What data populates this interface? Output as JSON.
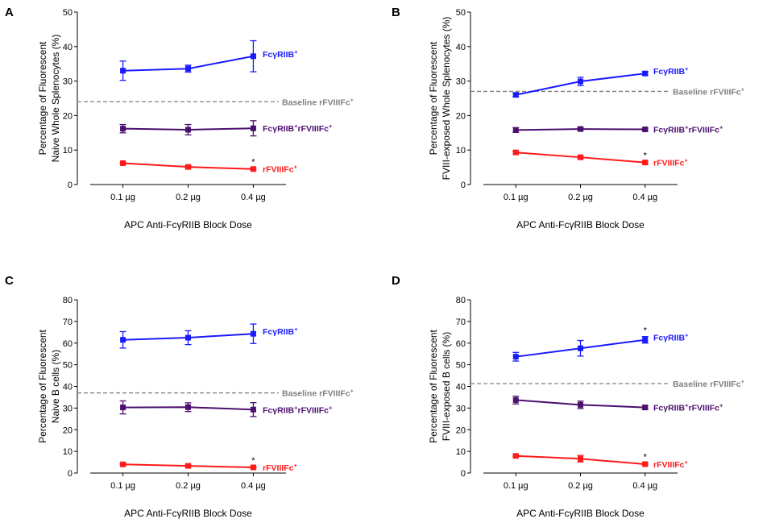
{
  "figure": {
    "x_axis_title": "APC Anti-FcγRIIB Block Dose",
    "colors": {
      "fcgr": "#1a1aff",
      "double": "#4b0f6e",
      "rfviii": "#ff1a1a",
      "baseline": "#808080",
      "axis": "#000000"
    }
  },
  "chart_data": [
    {
      "panel": "A",
      "type": "line",
      "categories": [
        "0.1 µg",
        "0.2 µg",
        "0.4 µg"
      ],
      "ylabel": [
        "Percentage of Fluorescent",
        "Naive Whole Splenocytes (%)"
      ],
      "xlabel": "APC Anti-FcγRIIB Block Dose",
      "ylim": [
        0,
        50
      ],
      "yticks": [
        0,
        10,
        20,
        30,
        40,
        50
      ],
      "baseline": {
        "value": 24,
        "label": "Baseline rFVIIIFc",
        "sup": "+"
      },
      "series": [
        {
          "key": "fcgr",
          "name": "FcγRIIB",
          "sup": "+",
          "values": [
            33,
            33.6,
            37.2
          ],
          "errors": [
            2.8,
            1,
            4.5
          ],
          "sig": [
            false,
            false,
            false
          ]
        },
        {
          "key": "double",
          "name": "FcγRIIB",
          "sup": "+",
          "name2": "rFVIIIFc",
          "sup2": "+",
          "values": [
            16.2,
            15.9,
            16.3
          ],
          "errors": [
            1.2,
            1.5,
            2.2
          ],
          "sig": [
            false,
            false,
            false
          ]
        },
        {
          "key": "rfviii",
          "name": "rFVIIIFc",
          "sup": "+",
          "values": [
            6.2,
            5.1,
            4.5
          ],
          "errors": [
            0.3,
            0.3,
            0.3
          ],
          "sig": [
            false,
            false,
            true
          ]
        }
      ]
    },
    {
      "panel": "B",
      "type": "line",
      "categories": [
        "0.1 µg",
        "0.2 µg",
        "0.4 µg"
      ],
      "ylabel": [
        "Percentage of Fluorescent",
        "FVIII-exposed Whole Splenocytes (%)"
      ],
      "xlabel": "APC Anti-FcγRIIB Block Dose",
      "ylim": [
        0,
        50
      ],
      "yticks": [
        0,
        10,
        20,
        30,
        40,
        50
      ],
      "baseline": {
        "value": 27,
        "label": "Baseline rFVIIIFc",
        "sup": "+"
      },
      "series": [
        {
          "key": "fcgr",
          "name": "FcγRIIB",
          "sup": "+",
          "values": [
            26,
            29.9,
            32.2
          ],
          "errors": [
            0.5,
            1.2,
            0.5
          ],
          "sig": [
            false,
            false,
            false
          ]
        },
        {
          "key": "double",
          "name": "FcγRIIB",
          "sup": "+",
          "name2": "rFVIIIFc",
          "sup2": "+",
          "values": [
            15.8,
            16.1,
            16
          ],
          "errors": [
            0.7,
            0.4,
            0.3
          ],
          "sig": [
            false,
            false,
            false
          ]
        },
        {
          "key": "rfviii",
          "name": "rFVIIIFc",
          "sup": "+",
          "values": [
            9.3,
            7.9,
            6.4
          ],
          "errors": [
            0.4,
            0.4,
            0.3
          ],
          "sig": [
            false,
            false,
            true
          ]
        }
      ]
    },
    {
      "panel": "C",
      "type": "line",
      "categories": [
        "0.1 µg",
        "0.2 µg",
        "0.4 µg"
      ],
      "ylabel": [
        "Percentage of Fluorescent",
        "Naive B cells (%)"
      ],
      "xlabel": "APC Anti-FcγRIIB Block Dose",
      "ylim": [
        0,
        80
      ],
      "yticks": [
        0,
        10,
        20,
        30,
        40,
        50,
        60,
        70,
        80
      ],
      "baseline": {
        "value": 37,
        "label": "Baseline rFVIIIFc",
        "sup": "+"
      },
      "series": [
        {
          "key": "fcgr",
          "name": "FcγRIIB",
          "sup": "+",
          "values": [
            61.5,
            62.5,
            64.3
          ],
          "errors": [
            3.8,
            3.2,
            4.5
          ],
          "sig": [
            false,
            false,
            false
          ]
        },
        {
          "key": "double",
          "name": "FcγRIIB",
          "sup": "+",
          "name2": "rFVIIIFc",
          "sup2": "+",
          "values": [
            30.3,
            30.4,
            29.3
          ],
          "errors": [
            3,
            2,
            3.2
          ],
          "sig": [
            false,
            false,
            false
          ]
        },
        {
          "key": "rfviii",
          "name": "rFVIIIFc",
          "sup": "+",
          "values": [
            4,
            3.3,
            2.6
          ],
          "errors": [
            0.4,
            0.4,
            0.3
          ],
          "sig": [
            false,
            false,
            true
          ]
        }
      ]
    },
    {
      "panel": "D",
      "type": "line",
      "categories": [
        "0.1 µg",
        "0.2 µg",
        "0.4 µg"
      ],
      "ylabel": [
        "Percentage of Fluorescent",
        "FVIII-exposed B cells (%)"
      ],
      "xlabel": "APC Anti-FcγRIIB Block Dose",
      "ylim": [
        0,
        80
      ],
      "yticks": [
        0,
        10,
        20,
        30,
        40,
        50,
        60,
        70,
        80
      ],
      "baseline": {
        "value": 41.3,
        "label": "Baseline rFVIIIFc",
        "sup": "+"
      },
      "series": [
        {
          "key": "fcgr",
          "name": "FcγRIIB",
          "sup": "+",
          "values": [
            53.7,
            57.6,
            61.5
          ],
          "errors": [
            2,
            3.6,
            1.5
          ],
          "sig": [
            false,
            false,
            true
          ]
        },
        {
          "key": "double",
          "name": "FcγRIIB",
          "sup": "+",
          "name2": "rFVIIIFc",
          "sup2": "+",
          "values": [
            33.7,
            31.5,
            30.3
          ],
          "errors": [
            1.8,
            1.7,
            0.8
          ],
          "sig": [
            false,
            false,
            false
          ]
        },
        {
          "key": "rfviii",
          "name": "rFVIIIFc",
          "sup": "+",
          "values": [
            7.9,
            6.6,
            4.1
          ],
          "errors": [
            0.4,
            1.5,
            0.5
          ],
          "sig": [
            false,
            false,
            true
          ]
        }
      ]
    }
  ]
}
